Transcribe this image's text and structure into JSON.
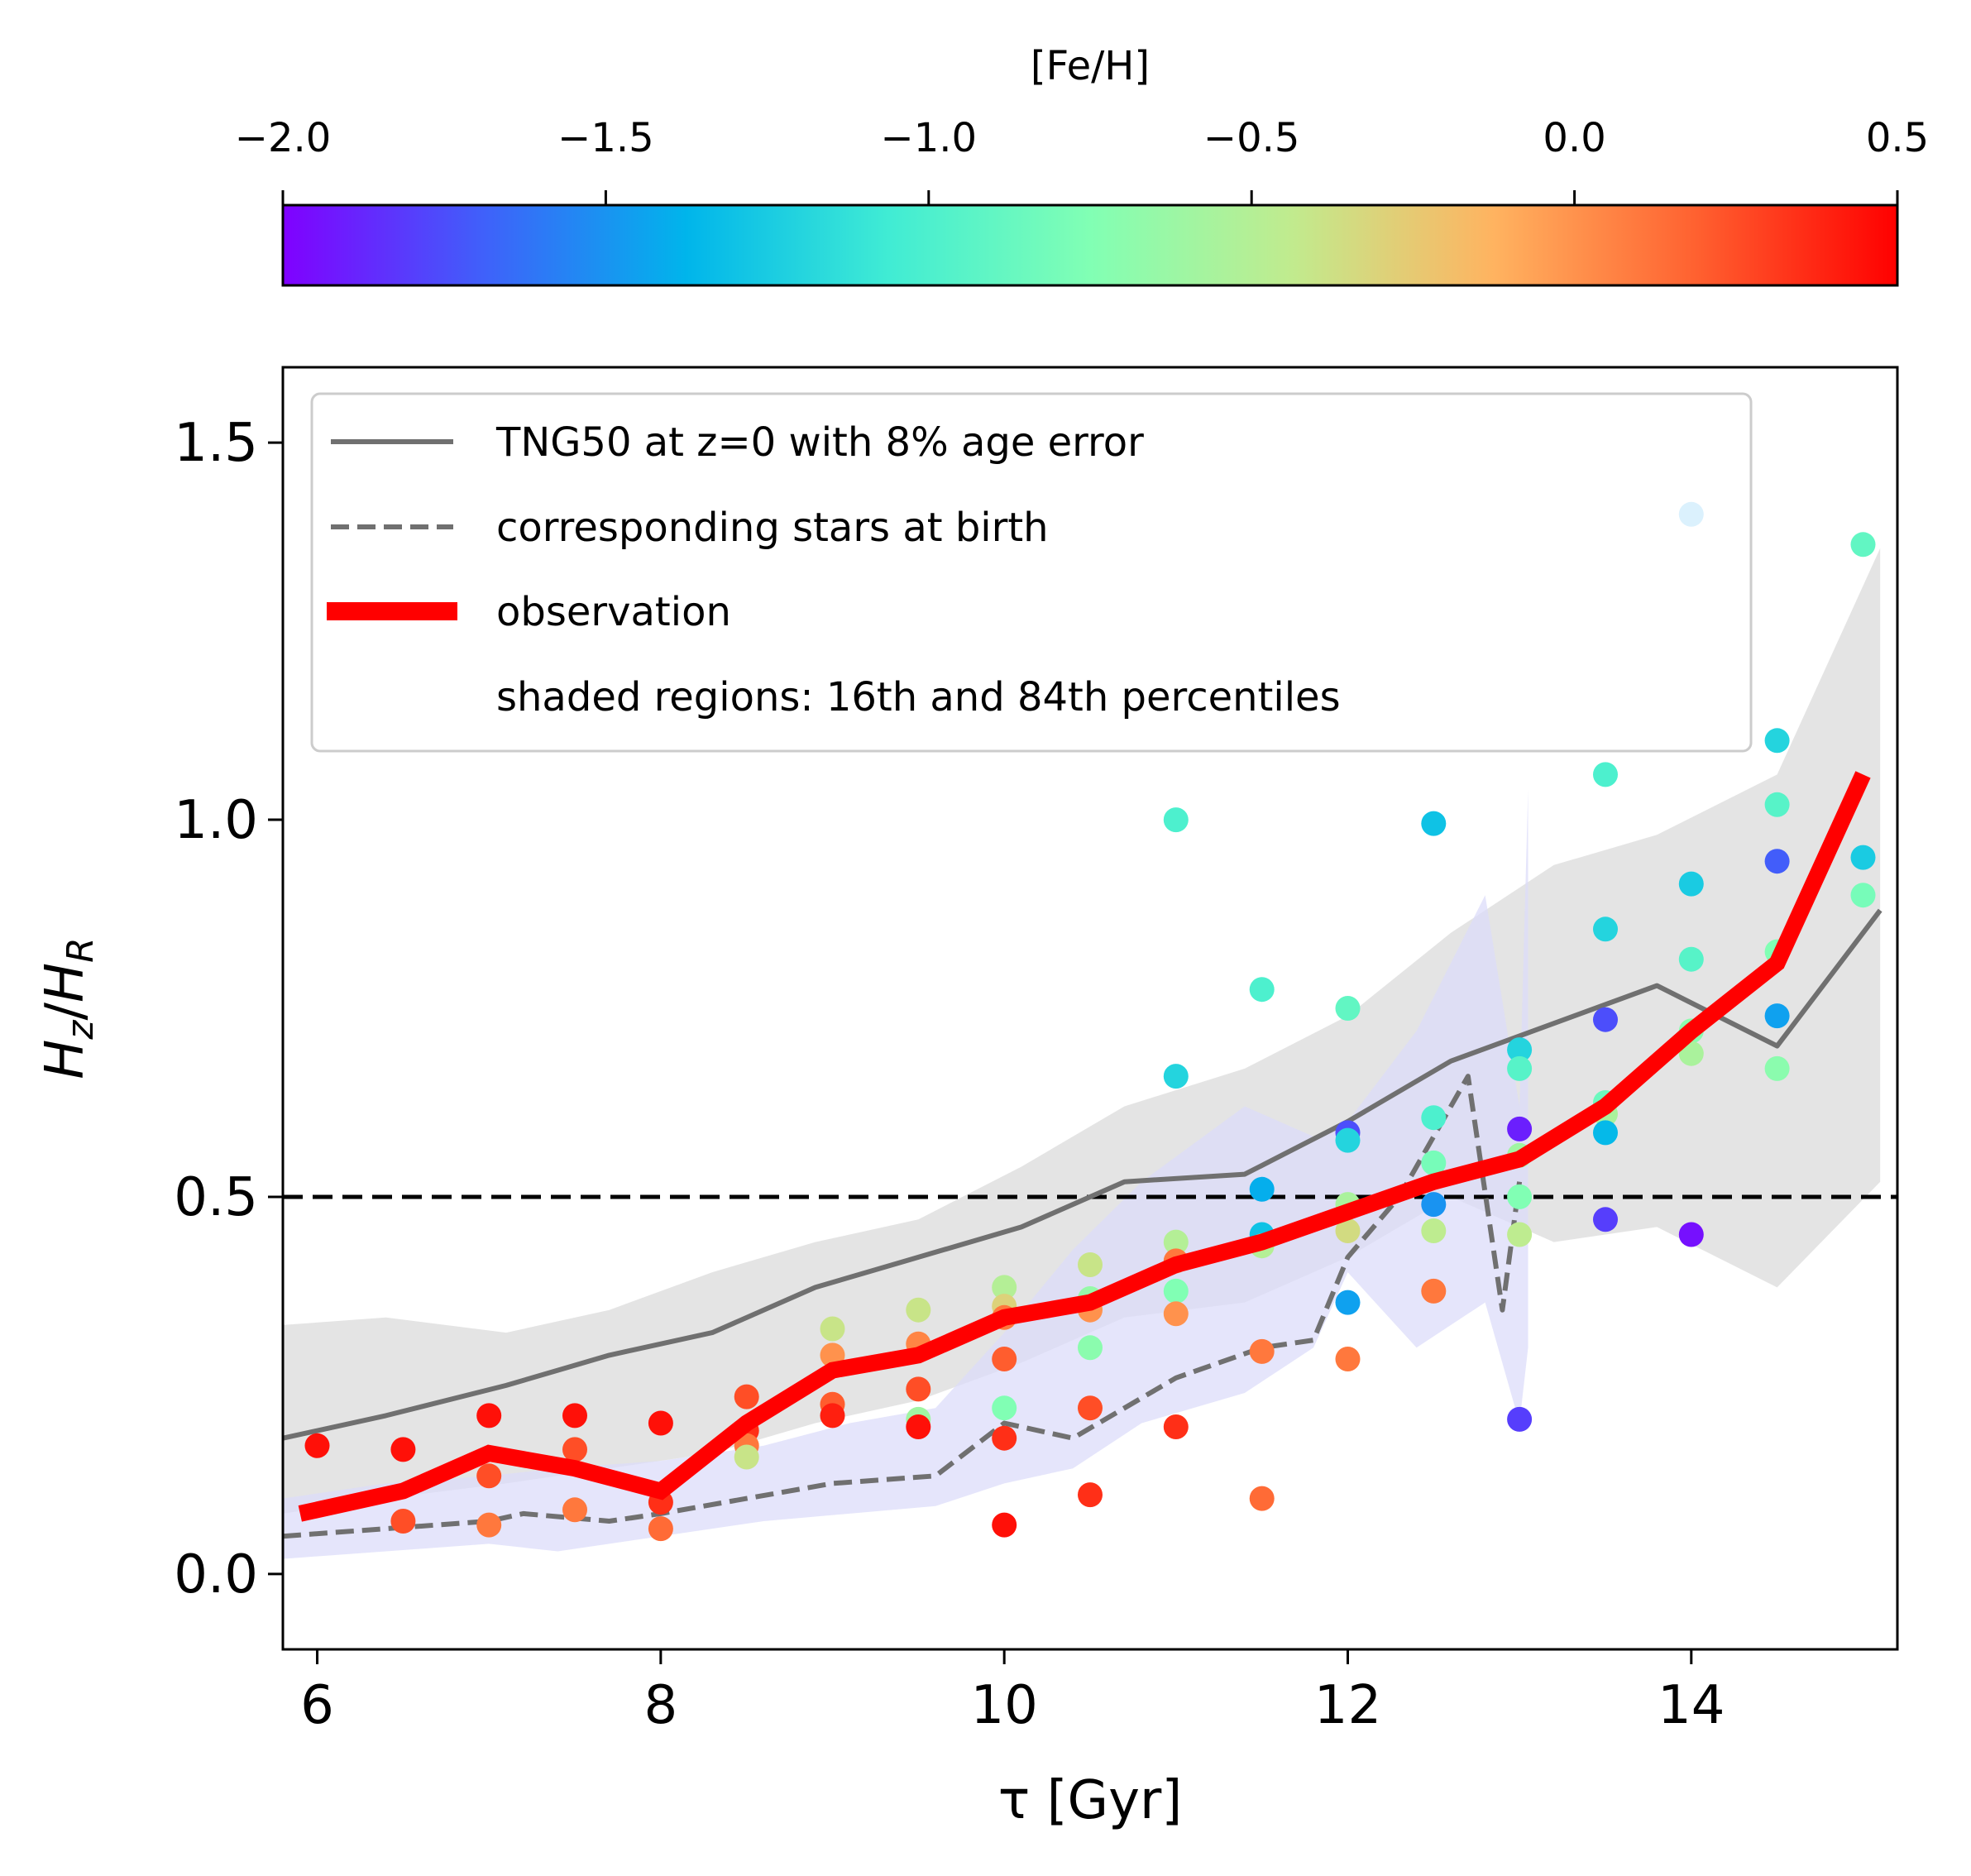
{
  "colorbar": {
    "label": "[Fe/H]",
    "range": [
      -2.0,
      0.5
    ],
    "tick_values": [
      -2.0,
      -1.5,
      -1.0,
      -0.5,
      0.0,
      0.5
    ],
    "tick_labels": [
      "−2.0",
      "−1.5",
      "−1.0",
      "−0.5",
      "0.0",
      "0.5"
    ],
    "colormap": "rainbow",
    "stops": [
      "#8000ff",
      "#3f61fa",
      "#00b5eb",
      "#40ecd4",
      "#81ffb4",
      "#c1eb8e",
      "#ffb360",
      "#ff6130",
      "#ff0000"
    ]
  },
  "chart_data": {
    "type": "scatter",
    "xlabel": "τ [Gyr]",
    "ylabel": "H_z/H_R",
    "ylabel_main": "H",
    "ylabel_sub1": "z",
    "ylabel_slash": "/",
    "ylabel_sub2": "R",
    "xlim": [
      5.8,
      15.2
    ],
    "ylim": [
      -0.1,
      1.6
    ],
    "x_ticks": [
      6,
      8,
      10,
      12,
      14
    ],
    "x_tick_labels": [
      "6",
      "8",
      "10",
      "12",
      "14"
    ],
    "y_ticks": [
      0.0,
      0.5,
      1.0,
      1.5
    ],
    "y_tick_labels": [
      "0.0",
      "0.5",
      "1.0",
      "1.5"
    ],
    "reference_line": {
      "y": 0.5,
      "style": "dashed",
      "color": "#000000"
    },
    "legend": {
      "position": "top-left",
      "entries": [
        {
          "label": "TNG50 at z=0 with 8% age error",
          "style": "solid",
          "color": "#707070"
        },
        {
          "label": "corresponding stars at birth",
          "style": "dashed",
          "color": "#707070"
        },
        {
          "label": "observation",
          "style": "thick",
          "color": "#ff0000"
        },
        {
          "label": "shaded regions: 16th and 84th percentiles",
          "style": "none",
          "color": ""
        }
      ]
    },
    "series": [
      {
        "name": "TNG50 at z=0 with 8% age error",
        "kind": "line",
        "color": "#707070",
        "x": [
          5.8,
          6.4,
          7.1,
          7.7,
          8.3,
          8.9,
          9.5,
          10.1,
          10.7,
          11.4,
          12.0,
          12.6,
          13.2,
          13.8,
          14.5,
          15.1
        ],
        "y": [
          0.18,
          0.21,
          0.25,
          0.29,
          0.32,
          0.38,
          0.42,
          0.46,
          0.52,
          0.53,
          0.6,
          0.68,
          0.73,
          0.78,
          0.7,
          0.88
        ]
      },
      {
        "name": "TNG50 16th-84th percentile band",
        "kind": "band",
        "color": "#d8d8d8",
        "x": [
          5.8,
          6.4,
          7.1,
          7.7,
          8.3,
          8.9,
          9.5,
          10.1,
          10.7,
          11.4,
          12.0,
          12.6,
          13.2,
          13.8,
          14.5,
          15.1
        ],
        "lower": [
          0.08,
          0.1,
          0.12,
          0.14,
          0.16,
          0.2,
          0.23,
          0.28,
          0.34,
          0.36,
          0.42,
          0.5,
          0.44,
          0.46,
          0.38,
          0.52
        ],
        "upper": [
          0.33,
          0.34,
          0.32,
          0.35,
          0.4,
          0.44,
          0.47,
          0.54,
          0.62,
          0.67,
          0.74,
          0.85,
          0.94,
          0.98,
          1.06,
          1.36
        ]
      },
      {
        "name": "corresponding stars at birth",
        "kind": "line",
        "color": "#707070",
        "x": [
          5.8,
          6.4,
          7.0,
          7.2,
          7.7,
          8.0,
          8.5,
          9.0,
          9.6,
          10.0,
          10.4,
          11.0,
          11.5,
          11.8,
          12.0,
          12.3,
          12.7,
          12.9,
          13.0
        ],
        "y": [
          0.05,
          0.06,
          0.07,
          0.08,
          0.07,
          0.08,
          0.1,
          0.12,
          0.13,
          0.2,
          0.18,
          0.26,
          0.3,
          0.31,
          0.42,
          0.5,
          0.66,
          0.35,
          0.52
        ]
      },
      {
        "name": "stars at birth 16th-84th percentile band",
        "kind": "band",
        "color": "#dcdcfa",
        "x": [
          5.8,
          6.4,
          7.0,
          7.4,
          8.0,
          8.6,
          9.1,
          9.6,
          10.0,
          10.4,
          10.8,
          11.4,
          11.8,
          12.0,
          12.4,
          12.8,
          13.0,
          13.05
        ],
        "lower": [
          0.02,
          0.03,
          0.04,
          0.03,
          0.05,
          0.07,
          0.08,
          0.09,
          0.12,
          0.14,
          0.2,
          0.24,
          0.3,
          0.4,
          0.3,
          0.36,
          0.2,
          0.3
        ],
        "upper": [
          0.1,
          0.12,
          0.13,
          0.14,
          0.15,
          0.17,
          0.2,
          0.22,
          0.32,
          0.43,
          0.52,
          0.62,
          0.58,
          0.6,
          0.72,
          0.9,
          0.62,
          1.04
        ]
      },
      {
        "name": "observation",
        "kind": "line",
        "color": "#ff0000",
        "x": [
          5.9,
          6.5,
          7.0,
          7.5,
          8.0,
          8.5,
          9.0,
          9.5,
          10.0,
          10.5,
          11.0,
          11.5,
          12.0,
          12.5,
          13.0,
          13.5,
          14.0,
          14.5,
          15.0
        ],
        "y": [
          0.08,
          0.11,
          0.16,
          0.14,
          0.11,
          0.2,
          0.27,
          0.29,
          0.34,
          0.36,
          0.41,
          0.44,
          0.48,
          0.52,
          0.55,
          0.62,
          0.72,
          0.81,
          1.06
        ]
      }
    ],
    "points": [
      {
        "x": 6.0,
        "y": 0.17,
        "feh": 0.45
      },
      {
        "x": 6.5,
        "y": 0.165,
        "feh": 0.45
      },
      {
        "x": 6.5,
        "y": 0.07,
        "feh": 0.25
      },
      {
        "x": 7.0,
        "y": 0.21,
        "feh": 0.45
      },
      {
        "x": 7.0,
        "y": 0.13,
        "feh": 0.25
      },
      {
        "x": 7.0,
        "y": 0.065,
        "feh": 0.1
      },
      {
        "x": 7.5,
        "y": 0.21,
        "feh": 0.45
      },
      {
        "x": 7.5,
        "y": 0.165,
        "feh": 0.25
      },
      {
        "x": 7.5,
        "y": 0.085,
        "feh": 0.1
      },
      {
        "x": 8.0,
        "y": 0.2,
        "feh": 0.45
      },
      {
        "x": 8.0,
        "y": 0.095,
        "feh": 0.35
      },
      {
        "x": 8.0,
        "y": 0.06,
        "feh": 0.15
      },
      {
        "x": 8.5,
        "y": 0.235,
        "feh": 0.25
      },
      {
        "x": 8.5,
        "y": 0.19,
        "feh": 0.35
      },
      {
        "x": 8.5,
        "y": 0.17,
        "feh": 0.1
      },
      {
        "x": 8.5,
        "y": 0.155,
        "feh": -0.4
      },
      {
        "x": 9.0,
        "y": 0.325,
        "feh": -0.4
      },
      {
        "x": 9.0,
        "y": 0.29,
        "feh": 0.0
      },
      {
        "x": 9.0,
        "y": 0.225,
        "feh": 0.2
      },
      {
        "x": 9.0,
        "y": 0.21,
        "feh": 0.4
      },
      {
        "x": 9.5,
        "y": 0.35,
        "feh": -0.4
      },
      {
        "x": 9.5,
        "y": 0.305,
        "feh": 0.05
      },
      {
        "x": 9.5,
        "y": 0.245,
        "feh": 0.25
      },
      {
        "x": 9.5,
        "y": 0.205,
        "feh": -0.6
      },
      {
        "x": 9.5,
        "y": 0.195,
        "feh": 0.45
      },
      {
        "x": 10.0,
        "y": 0.38,
        "feh": -0.5
      },
      {
        "x": 10.0,
        "y": 0.355,
        "feh": -0.3
      },
      {
        "x": 10.0,
        "y": 0.34,
        "feh": 0.1
      },
      {
        "x": 10.0,
        "y": 0.285,
        "feh": 0.2
      },
      {
        "x": 10.0,
        "y": 0.22,
        "feh": -0.75
      },
      {
        "x": 10.0,
        "y": 0.18,
        "feh": 0.35
      },
      {
        "x": 10.0,
        "y": 0.065,
        "feh": 0.45
      },
      {
        "x": 10.5,
        "y": 0.41,
        "feh": -0.4
      },
      {
        "x": 10.5,
        "y": 0.365,
        "feh": -0.65
      },
      {
        "x": 10.5,
        "y": 0.35,
        "feh": 0.0
      },
      {
        "x": 10.5,
        "y": 0.3,
        "feh": -0.7
      },
      {
        "x": 10.5,
        "y": 0.22,
        "feh": 0.25
      },
      {
        "x": 10.5,
        "y": 0.105,
        "feh": 0.35
      },
      {
        "x": 11.0,
        "y": 1.0,
        "feh": -1.0
      },
      {
        "x": 11.0,
        "y": 0.66,
        "feh": -1.2
      },
      {
        "x": 11.0,
        "y": 0.44,
        "feh": -0.5
      },
      {
        "x": 11.0,
        "y": 0.415,
        "feh": 0.1
      },
      {
        "x": 11.0,
        "y": 0.375,
        "feh": -0.75
      },
      {
        "x": 11.0,
        "y": 0.345,
        "feh": 0.0
      },
      {
        "x": 11.0,
        "y": 0.195,
        "feh": 0.35
      },
      {
        "x": 11.5,
        "y": 0.775,
        "feh": -1.0
      },
      {
        "x": 11.5,
        "y": 0.51,
        "feh": -1.4
      },
      {
        "x": 11.5,
        "y": 0.45,
        "feh": -1.3
      },
      {
        "x": 11.5,
        "y": 0.435,
        "feh": -0.5
      },
      {
        "x": 11.5,
        "y": 0.295,
        "feh": 0.1
      },
      {
        "x": 11.5,
        "y": 0.1,
        "feh": 0.15
      },
      {
        "x": 12.0,
        "y": 0.75,
        "feh": -0.9
      },
      {
        "x": 12.0,
        "y": 0.585,
        "feh": -1.75
      },
      {
        "x": 12.0,
        "y": 0.575,
        "feh": -1.2
      },
      {
        "x": 12.0,
        "y": 0.49,
        "feh": -0.55
      },
      {
        "x": 12.0,
        "y": 0.455,
        "feh": -0.35
      },
      {
        "x": 12.0,
        "y": 0.36,
        "feh": -1.45
      },
      {
        "x": 12.0,
        "y": 0.285,
        "feh": 0.1
      },
      {
        "x": 12.5,
        "y": 0.995,
        "feh": -1.3
      },
      {
        "x": 12.5,
        "y": 0.605,
        "feh": -1.0
      },
      {
        "x": 12.5,
        "y": 0.545,
        "feh": -0.8
      },
      {
        "x": 12.5,
        "y": 0.49,
        "feh": -1.5
      },
      {
        "x": 12.5,
        "y": 0.455,
        "feh": -0.45
      },
      {
        "x": 12.5,
        "y": 0.375,
        "feh": 0.1
      },
      {
        "x": 13.0,
        "y": 0.695,
        "feh": -1.2
      },
      {
        "x": 13.0,
        "y": 0.67,
        "feh": -0.95
      },
      {
        "x": 13.0,
        "y": 0.59,
        "feh": -1.9
      },
      {
        "x": 13.0,
        "y": 0.555,
        "feh": -0.6
      },
      {
        "x": 13.0,
        "y": 0.5,
        "feh": -0.75
      },
      {
        "x": 13.0,
        "y": 0.45,
        "feh": -0.45
      },
      {
        "x": 13.0,
        "y": 0.205,
        "feh": -1.8
      },
      {
        "x": 13.5,
        "y": 1.06,
        "feh": -1.0
      },
      {
        "x": 13.5,
        "y": 0.855,
        "feh": -1.2
      },
      {
        "x": 13.5,
        "y": 0.735,
        "feh": -1.75
      },
      {
        "x": 13.5,
        "y": 0.625,
        "feh": -0.85
      },
      {
        "x": 13.5,
        "y": 0.61,
        "feh": -0.55
      },
      {
        "x": 13.5,
        "y": 0.585,
        "feh": -1.35
      },
      {
        "x": 13.5,
        "y": 0.47,
        "feh": -1.8
      },
      {
        "x": 14.0,
        "y": 1.405,
        "feh": -1.45
      },
      {
        "x": 14.0,
        "y": 0.915,
        "feh": -1.25
      },
      {
        "x": 14.0,
        "y": 0.815,
        "feh": -0.95
      },
      {
        "x": 14.0,
        "y": 0.72,
        "feh": -0.7
      },
      {
        "x": 14.0,
        "y": 0.69,
        "feh": -0.55
      },
      {
        "x": 14.0,
        "y": 0.45,
        "feh": -1.95
      },
      {
        "x": 14.5,
        "y": 1.105,
        "feh": -1.2
      },
      {
        "x": 14.5,
        "y": 1.02,
        "feh": -0.95
      },
      {
        "x": 14.5,
        "y": 0.945,
        "feh": -1.7
      },
      {
        "x": 14.5,
        "y": 0.825,
        "feh": -0.75
      },
      {
        "x": 14.5,
        "y": 0.74,
        "feh": -1.45
      },
      {
        "x": 14.5,
        "y": 0.67,
        "feh": -0.7
      },
      {
        "x": 15.0,
        "y": 1.365,
        "feh": -0.9
      },
      {
        "x": 15.0,
        "y": 0.95,
        "feh": -1.25
      },
      {
        "x": 15.0,
        "y": 0.9,
        "feh": -0.8
      }
    ]
  }
}
